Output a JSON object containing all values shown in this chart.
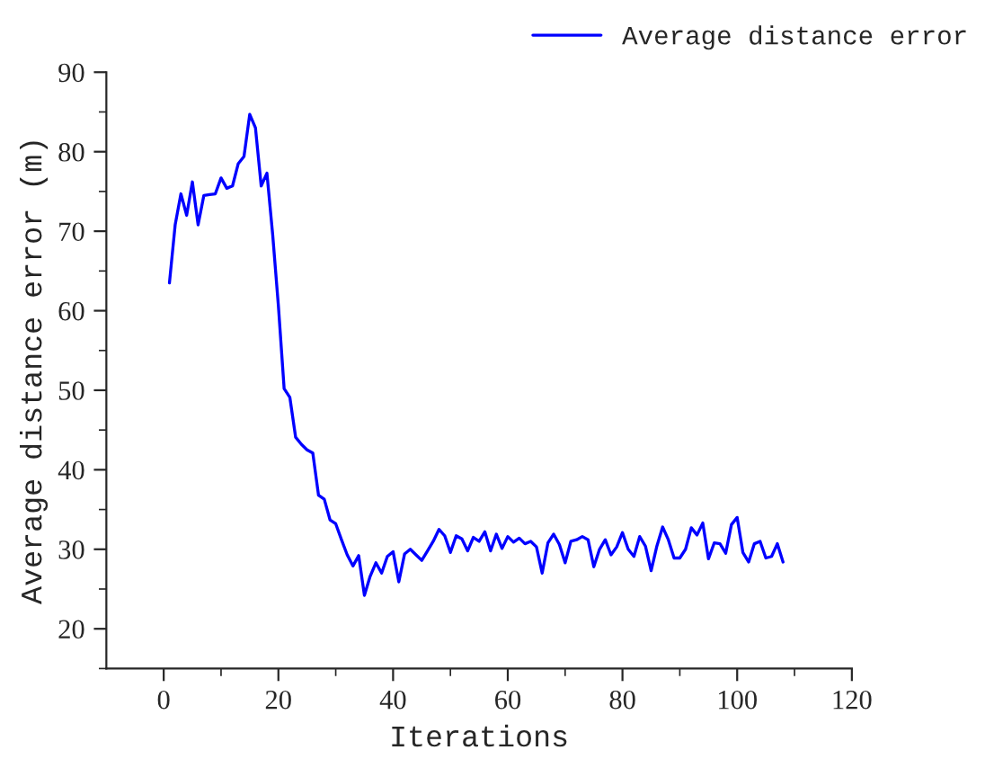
{
  "chart_data": {
    "type": "line",
    "xlabel": "Iterations",
    "ylabel": "Average distance error (m)",
    "xlim": [
      -10,
      120
    ],
    "xticks": [
      0,
      20,
      40,
      60,
      80,
      100,
      120
    ],
    "ylim": [
      15,
      90
    ],
    "yticks": [
      20,
      30,
      40,
      50,
      60,
      70,
      80,
      90
    ],
    "legend": "top right",
    "grid": false,
    "marker": "none",
    "line_style": "solid",
    "x": [
      1,
      2,
      3,
      4,
      5,
      6,
      7,
      8,
      9,
      10,
      11,
      12,
      13,
      14,
      15,
      16,
      17,
      18,
      19,
      20,
      21,
      22,
      23,
      24,
      25,
      26,
      27,
      28,
      29,
      30,
      31,
      32,
      33,
      34,
      35,
      36,
      37,
      38,
      39,
      40,
      41,
      42,
      43,
      44,
      45,
      46,
      47,
      48,
      49,
      50,
      51,
      52,
      53,
      54,
      55,
      56,
      57,
      58,
      59,
      60,
      61,
      62,
      63,
      64,
      65,
      66,
      67,
      68,
      69,
      70,
      71,
      72,
      73,
      74,
      75,
      76,
      77,
      78,
      79,
      80,
      81,
      82,
      83,
      84,
      85,
      86,
      87,
      88,
      89,
      90,
      91,
      92,
      93,
      94,
      95,
      96,
      97,
      98,
      99,
      100,
      101,
      102,
      103,
      104,
      105,
      106,
      107,
      108
    ],
    "series": [
      {
        "name": "Average distance error",
        "color": "#0000ff",
        "values": [
          63.5,
          70.8,
          74.7,
          72,
          76.2,
          70.8,
          74.5,
          74.6,
          74.7,
          76.7,
          75.4,
          75.7,
          78.5,
          79.4,
          84.7,
          83,
          75.7,
          77.3,
          69.6,
          60.6,
          50.2,
          49.1,
          44.1,
          43.2,
          42.5,
          42.1,
          36.8,
          36.3,
          33.7,
          33.2,
          31.2,
          29.3,
          27.9,
          29.2,
          24.2,
          26.6,
          28.3,
          27,
          29.1,
          29.7,
          25.9,
          29.4,
          30,
          29.3,
          28.6,
          29.8,
          31,
          32.5,
          31.7,
          29.6,
          31.7,
          31.3,
          29.8,
          31.5,
          31,
          32.2,
          29.8,
          31.9,
          30.1,
          31.6,
          30.9,
          31.4,
          30.7,
          31,
          30.3,
          27,
          30.8,
          31.9,
          30.6,
          28.3,
          31,
          31.2,
          31.6,
          31.2,
          27.8,
          30,
          31.2,
          29.3,
          30.3,
          32.1,
          30,
          29.1,
          31.6,
          30.4,
          27.3,
          30.4,
          32.8,
          31.2,
          28.9,
          28.9,
          30,
          32.7,
          31.8,
          33.3,
          28.8,
          30.8,
          30.7,
          29.5,
          33.1,
          34,
          29.6,
          28.4,
          30.7,
          31,
          28.9,
          29.1,
          30.7,
          28.4
        ]
      }
    ]
  }
}
